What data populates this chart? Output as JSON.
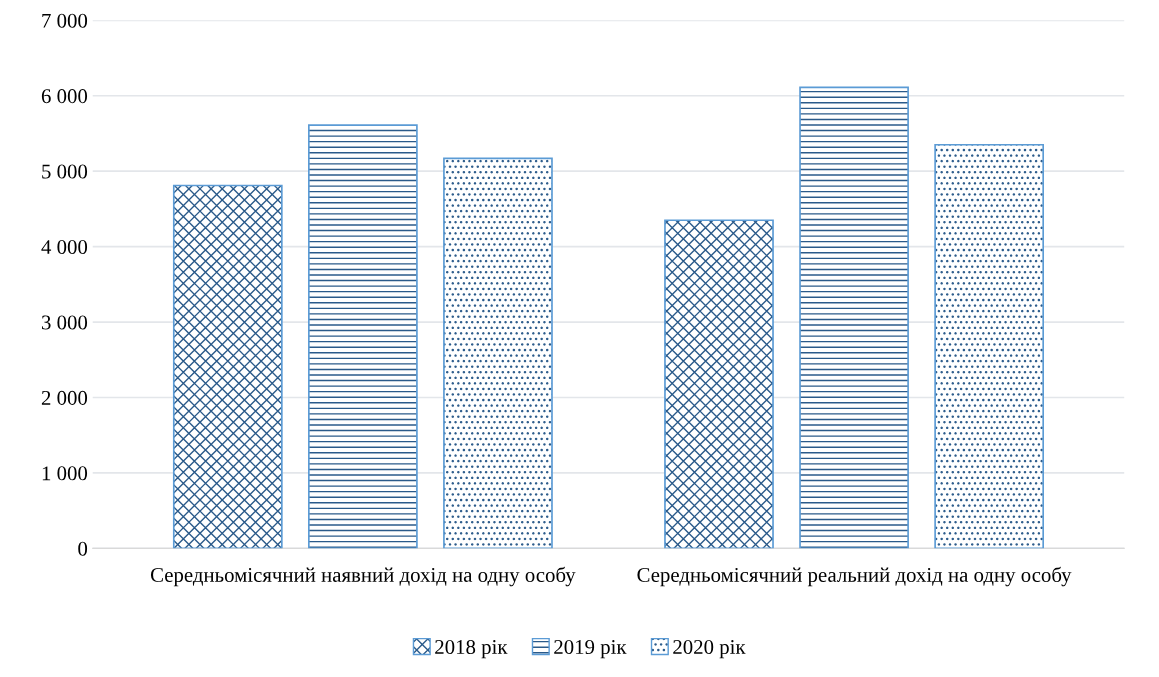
{
  "chart_data": {
    "type": "bar",
    "categories": [
      "Середньомісячний наявний дохід на одну особу",
      "Середньомісячний реальний дохід на одну особу"
    ],
    "series": [
      {
        "name": "2018 рік",
        "color": "#5b9bd5",
        "values": [
          4810,
          4350
        ]
      },
      {
        "name": "2019 рік",
        "color": "#5b9bd5",
        "values": [
          5610,
          6110
        ]
      },
      {
        "name": "2020 рік",
        "color": "#5b9bd5",
        "values": [
          5170,
          5350
        ]
      }
    ],
    "ylim": [
      0,
      7000
    ],
    "yticks": [
      {
        "value": 0,
        "label": "0"
      },
      {
        "value": 1000,
        "label": "1 000"
      },
      {
        "value": 2000,
        "label": "2 000"
      },
      {
        "value": 3000,
        "label": "3 000"
      },
      {
        "value": 4000,
        "label": "4 000"
      },
      {
        "value": 5000,
        "label": "5 000"
      },
      {
        "value": 6000,
        "label": "6 000"
      },
      {
        "value": 7000,
        "label": "7 000"
      }
    ],
    "grid": "y",
    "legend": "bottom"
  }
}
